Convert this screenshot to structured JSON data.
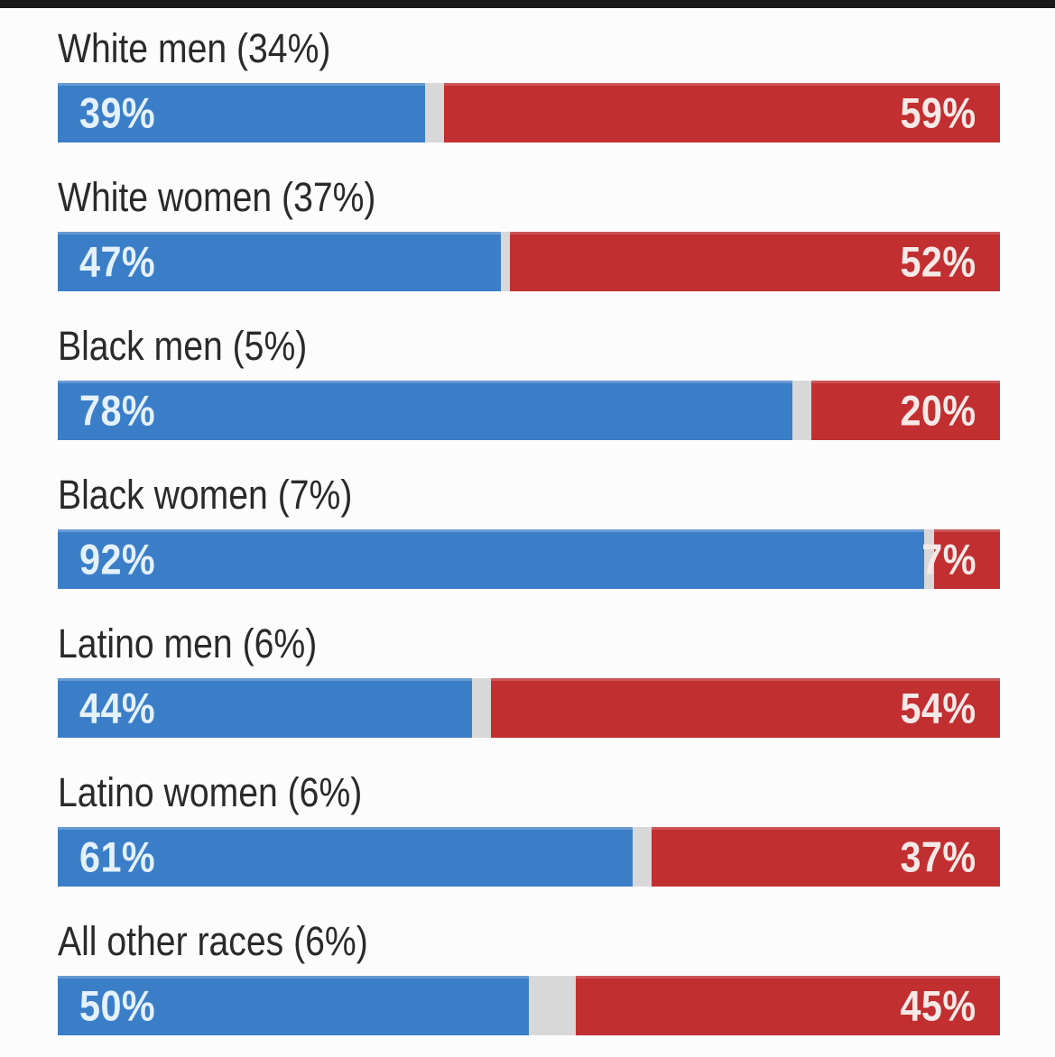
{
  "page": {
    "background": "#fcfcfc"
  },
  "colors": {
    "top-strip": "#191919",
    "blue": "#3b7ec8",
    "red": "#c22f31",
    "track": "#d8d8d8",
    "label-text": "#2a2a2a",
    "value-on-blue": "#e4f1fa",
    "value-on-red": "#f5e9e7"
  },
  "chart_data": {
    "type": "bar",
    "subtype": "horizontal-paired-stacked",
    "orientation": "horizontal",
    "title": "",
    "xlabel": "",
    "ylabel": "",
    "xlim": [
      0,
      100
    ],
    "grid": false,
    "legend": "none",
    "value_labels": "inside-bar-ends",
    "note": "Each row is a 0-100% track; blue segment anchored left, red segment anchored right, light gray remainder between. Parenthetical number in each category label is that group's share shown on screen.",
    "categories": [
      "White men (34%)",
      "White women (37%)",
      "Black men (5%)",
      "Black women (7%)",
      "Latino men (6%)",
      "Latino women (6%)",
      "All other races (6%)"
    ],
    "series": [
      {
        "name": "blue",
        "color": "#3b7ec8",
        "values": [
          39,
          47,
          78,
          92,
          44,
          61,
          50
        ]
      },
      {
        "name": "red",
        "color": "#c22f31",
        "values": [
          59,
          52,
          20,
          7,
          54,
          37,
          45
        ]
      }
    ]
  },
  "rows": [
    {
      "label": "White men (34%)",
      "blue_value": 39,
      "blue_label": "39%",
      "red_value": 59,
      "red_label": "59%"
    },
    {
      "label": "White women (37%)",
      "blue_value": 47,
      "blue_label": "47%",
      "red_value": 52,
      "red_label": "52%"
    },
    {
      "label": "Black men (5%)",
      "blue_value": 78,
      "blue_label": "78%",
      "red_value": 20,
      "red_label": "20%"
    },
    {
      "label": "Black women (7%)",
      "blue_value": 92,
      "blue_label": "92%",
      "red_value": 7,
      "red_label": "7%"
    },
    {
      "label": "Latino men (6%)",
      "blue_value": 44,
      "blue_label": "44%",
      "red_value": 54,
      "red_label": "54%"
    },
    {
      "label": "Latino women (6%)",
      "blue_value": 61,
      "blue_label": "61%",
      "red_value": 37,
      "red_label": "37%"
    },
    {
      "label": "All other races (6%)",
      "blue_value": 50,
      "blue_label": "50%",
      "red_value": 45,
      "red_label": "45%"
    }
  ]
}
